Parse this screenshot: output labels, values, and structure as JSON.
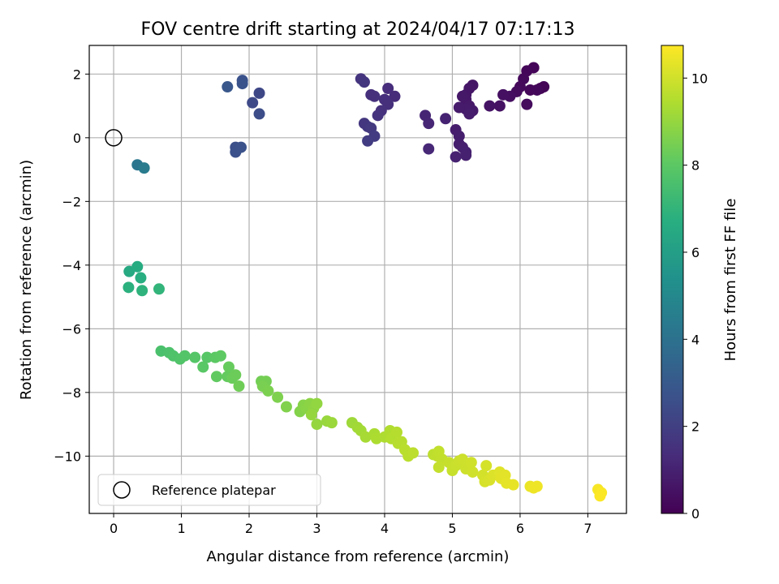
{
  "chart_data": {
    "type": "scatter",
    "title": "FOV centre drift starting at 2024/04/17 07:17:13",
    "xlabel": "Angular distance from reference (arcmin)",
    "ylabel": "Rotation from reference (arcmin)",
    "xlim": [
      -0.36,
      7.57
    ],
    "ylim": [
      -11.8,
      2.9
    ],
    "grid": true,
    "x_ticks": [
      0,
      1,
      2,
      3,
      4,
      5,
      6,
      7
    ],
    "y_ticks": [
      2,
      0,
      -2,
      -4,
      -6,
      -8,
      -10
    ],
    "colorbar": {
      "label": "Hours from first FF file",
      "colormap": "viridis",
      "range": [
        0,
        10.75
      ],
      "ticks": [
        0,
        2,
        4,
        6,
        8,
        10
      ]
    },
    "reference": {
      "label": "Reference platepar",
      "x": 0,
      "y": 0
    },
    "legend": {
      "location": "lower left",
      "entries": [
        "Reference platepar"
      ]
    },
    "points": [
      {
        "x": 6.2,
        "y": 2.2,
        "t": 0.1
      },
      {
        "x": 6.1,
        "y": 2.1,
        "t": 0.15
      },
      {
        "x": 6.05,
        "y": 1.85,
        "t": 0.2
      },
      {
        "x": 6.3,
        "y": 1.55,
        "t": 0.1
      },
      {
        "x": 6.35,
        "y": 1.6,
        "t": 0.12
      },
      {
        "x": 6.15,
        "y": 1.5,
        "t": 0.18
      },
      {
        "x": 6.25,
        "y": 1.5,
        "t": 0.2
      },
      {
        "x": 6.0,
        "y": 1.6,
        "t": 0.25
      },
      {
        "x": 6.1,
        "y": 1.05,
        "t": 0.3
      },
      {
        "x": 5.95,
        "y": 1.45,
        "t": 0.35
      },
      {
        "x": 5.85,
        "y": 1.3,
        "t": 0.4
      },
      {
        "x": 5.75,
        "y": 1.35,
        "t": 0.45
      },
      {
        "x": 5.7,
        "y": 1.0,
        "t": 0.5
      },
      {
        "x": 5.55,
        "y": 1.0,
        "t": 0.55
      },
      {
        "x": 5.3,
        "y": 1.65,
        "t": 0.6
      },
      {
        "x": 5.25,
        "y": 1.55,
        "t": 0.62
      },
      {
        "x": 5.2,
        "y": 1.35,
        "t": 0.65
      },
      {
        "x": 5.2,
        "y": 1.2,
        "t": 0.68
      },
      {
        "x": 5.15,
        "y": 1.3,
        "t": 0.7
      },
      {
        "x": 5.25,
        "y": 1.0,
        "t": 0.72
      },
      {
        "x": 5.3,
        "y": 0.85,
        "t": 0.75
      },
      {
        "x": 5.2,
        "y": 0.9,
        "t": 0.78
      },
      {
        "x": 5.1,
        "y": 0.95,
        "t": 0.8
      },
      {
        "x": 5.25,
        "y": 0.75,
        "t": 0.82
      },
      {
        "x": 5.05,
        "y": 0.25,
        "t": 0.85
      },
      {
        "x": 5.1,
        "y": 0.05,
        "t": 0.88
      },
      {
        "x": 5.1,
        "y": -0.2,
        "t": 0.9
      },
      {
        "x": 5.15,
        "y": -0.3,
        "t": 0.92
      },
      {
        "x": 5.2,
        "y": -0.45,
        "t": 0.95
      },
      {
        "x": 5.2,
        "y": -0.55,
        "t": 0.98
      },
      {
        "x": 5.05,
        "y": -0.6,
        "t": 1.0
      },
      {
        "x": 4.9,
        "y": 0.6,
        "t": 1.05
      },
      {
        "x": 4.6,
        "y": 0.7,
        "t": 1.1
      },
      {
        "x": 4.65,
        "y": 0.45,
        "t": 1.15
      },
      {
        "x": 4.65,
        "y": -0.35,
        "t": 1.2
      },
      {
        "x": 4.15,
        "y": 1.3,
        "t": 1.3
      },
      {
        "x": 4.05,
        "y": 1.55,
        "t": 1.35
      },
      {
        "x": 4.0,
        "y": 1.2,
        "t": 1.4
      },
      {
        "x": 4.05,
        "y": 1.05,
        "t": 1.45
      },
      {
        "x": 3.95,
        "y": 0.85,
        "t": 1.5
      },
      {
        "x": 3.9,
        "y": 0.7,
        "t": 1.55
      },
      {
        "x": 3.85,
        "y": 1.3,
        "t": 1.5
      },
      {
        "x": 3.8,
        "y": 1.35,
        "t": 1.45
      },
      {
        "x": 3.65,
        "y": 1.85,
        "t": 1.6
      },
      {
        "x": 3.7,
        "y": 1.75,
        "t": 1.65
      },
      {
        "x": 3.7,
        "y": 0.45,
        "t": 1.7
      },
      {
        "x": 3.75,
        "y": 0.35,
        "t": 1.75
      },
      {
        "x": 3.8,
        "y": 0.3,
        "t": 1.8
      },
      {
        "x": 3.85,
        "y": 0.05,
        "t": 1.85
      },
      {
        "x": 3.75,
        "y": -0.1,
        "t": 1.9
      },
      {
        "x": 2.15,
        "y": 1.4,
        "t": 2.3
      },
      {
        "x": 2.05,
        "y": 1.1,
        "t": 2.4
      },
      {
        "x": 2.15,
        "y": 0.75,
        "t": 2.5
      },
      {
        "x": 1.9,
        "y": 1.8,
        "t": 2.7
      },
      {
        "x": 1.9,
        "y": 1.7,
        "t": 2.75
      },
      {
        "x": 1.68,
        "y": 1.6,
        "t": 2.9
      },
      {
        "x": 1.8,
        "y": -0.3,
        "t": 2.6
      },
      {
        "x": 1.8,
        "y": -0.45,
        "t": 2.65
      },
      {
        "x": 1.88,
        "y": -0.3,
        "t": 2.7
      },
      {
        "x": 0.35,
        "y": -0.85,
        "t": 4.2
      },
      {
        "x": 0.45,
        "y": -0.95,
        "t": 4.4
      },
      {
        "x": 0.23,
        "y": -4.2,
        "t": 6.5
      },
      {
        "x": 0.35,
        "y": -4.05,
        "t": 6.6
      },
      {
        "x": 0.4,
        "y": -4.4,
        "t": 6.7
      },
      {
        "x": 0.22,
        "y": -4.7,
        "t": 6.8
      },
      {
        "x": 0.42,
        "y": -4.8,
        "t": 6.9
      },
      {
        "x": 0.67,
        "y": -4.75,
        "t": 7.0
      },
      {
        "x": 0.7,
        "y": -6.7,
        "t": 7.6
      },
      {
        "x": 0.82,
        "y": -6.75,
        "t": 7.65
      },
      {
        "x": 0.88,
        "y": -6.85,
        "t": 7.7
      },
      {
        "x": 0.98,
        "y": -6.95,
        "t": 7.75
      },
      {
        "x": 1.05,
        "y": -6.85,
        "t": 7.8
      },
      {
        "x": 1.2,
        "y": -6.9,
        "t": 7.85
      },
      {
        "x": 1.38,
        "y": -6.9,
        "t": 7.9
      },
      {
        "x": 1.32,
        "y": -7.2,
        "t": 7.95
      },
      {
        "x": 1.5,
        "y": -6.9,
        "t": 8.0
      },
      {
        "x": 1.58,
        "y": -6.85,
        "t": 8.05
      },
      {
        "x": 1.52,
        "y": -7.5,
        "t": 8.1
      },
      {
        "x": 1.68,
        "y": -7.5,
        "t": 8.15
      },
      {
        "x": 1.7,
        "y": -7.2,
        "t": 8.2
      },
      {
        "x": 1.75,
        "y": -7.55,
        "t": 8.25
      },
      {
        "x": 1.8,
        "y": -7.45,
        "t": 8.3
      },
      {
        "x": 1.85,
        "y": -7.8,
        "t": 8.35
      },
      {
        "x": 2.18,
        "y": -7.65,
        "t": 8.4
      },
      {
        "x": 2.25,
        "y": -7.65,
        "t": 8.45
      },
      {
        "x": 2.2,
        "y": -7.8,
        "t": 8.5
      },
      {
        "x": 2.28,
        "y": -7.95,
        "t": 8.55
      },
      {
        "x": 2.42,
        "y": -8.15,
        "t": 8.6
      },
      {
        "x": 2.55,
        "y": -8.45,
        "t": 8.65
      },
      {
        "x": 2.75,
        "y": -8.6,
        "t": 8.7
      },
      {
        "x": 2.8,
        "y": -8.4,
        "t": 8.75
      },
      {
        "x": 2.85,
        "y": -8.5,
        "t": 8.8
      },
      {
        "x": 2.9,
        "y": -8.35,
        "t": 8.85
      },
      {
        "x": 2.95,
        "y": -8.5,
        "t": 8.9
      },
      {
        "x": 3.0,
        "y": -8.35,
        "t": 8.95
      },
      {
        "x": 2.92,
        "y": -8.7,
        "t": 9.0
      },
      {
        "x": 3.0,
        "y": -9.0,
        "t": 9.0
      },
      {
        "x": 3.15,
        "y": -8.9,
        "t": 9.05
      },
      {
        "x": 3.22,
        "y": -8.95,
        "t": 9.1
      },
      {
        "x": 3.52,
        "y": -8.95,
        "t": 9.15
      },
      {
        "x": 3.6,
        "y": -9.1,
        "t": 9.2
      },
      {
        "x": 3.65,
        "y": -9.2,
        "t": 9.25
      },
      {
        "x": 3.72,
        "y": -9.4,
        "t": 9.3
      },
      {
        "x": 3.85,
        "y": -9.3,
        "t": 9.35
      },
      {
        "x": 3.88,
        "y": -9.45,
        "t": 9.4
      },
      {
        "x": 4.0,
        "y": -9.4,
        "t": 9.42
      },
      {
        "x": 4.08,
        "y": -9.2,
        "t": 9.45
      },
      {
        "x": 4.1,
        "y": -9.45,
        "t": 9.5
      },
      {
        "x": 4.18,
        "y": -9.25,
        "t": 9.52
      },
      {
        "x": 4.2,
        "y": -9.6,
        "t": 9.55
      },
      {
        "x": 4.25,
        "y": -9.55,
        "t": 9.58
      },
      {
        "x": 4.3,
        "y": -9.8,
        "t": 9.6
      },
      {
        "x": 4.35,
        "y": -10.0,
        "t": 9.62
      },
      {
        "x": 4.42,
        "y": -9.9,
        "t": 9.65
      },
      {
        "x": 4.72,
        "y": -9.95,
        "t": 9.7
      },
      {
        "x": 4.78,
        "y": -10.0,
        "t": 9.72
      },
      {
        "x": 4.8,
        "y": -9.85,
        "t": 9.75
      },
      {
        "x": 4.85,
        "y": -10.1,
        "t": 9.78
      },
      {
        "x": 4.8,
        "y": -10.35,
        "t": 9.8
      },
      {
        "x": 4.95,
        "y": -10.2,
        "t": 9.82
      },
      {
        "x": 5.0,
        "y": -10.45,
        "t": 9.85
      },
      {
        "x": 5.05,
        "y": -10.3,
        "t": 9.88
      },
      {
        "x": 5.1,
        "y": -10.15,
        "t": 9.9
      },
      {
        "x": 5.15,
        "y": -10.1,
        "t": 9.92
      },
      {
        "x": 5.2,
        "y": -10.4,
        "t": 9.95
      },
      {
        "x": 5.28,
        "y": -10.2,
        "t": 9.98
      },
      {
        "x": 5.3,
        "y": -10.5,
        "t": 10.0
      },
      {
        "x": 5.45,
        "y": -10.6,
        "t": 10.05
      },
      {
        "x": 5.5,
        "y": -10.3,
        "t": 10.08
      },
      {
        "x": 5.48,
        "y": -10.8,
        "t": 10.1
      },
      {
        "x": 5.55,
        "y": -10.75,
        "t": 10.15
      },
      {
        "x": 5.6,
        "y": -10.6,
        "t": 10.2
      },
      {
        "x": 5.7,
        "y": -10.5,
        "t": 10.25
      },
      {
        "x": 5.72,
        "y": -10.7,
        "t": 10.3
      },
      {
        "x": 5.78,
        "y": -10.6,
        "t": 10.32
      },
      {
        "x": 5.8,
        "y": -10.85,
        "t": 10.35
      },
      {
        "x": 5.9,
        "y": -10.9,
        "t": 10.38
      },
      {
        "x": 6.15,
        "y": -10.95,
        "t": 10.45
      },
      {
        "x": 6.2,
        "y": -11.0,
        "t": 10.5
      },
      {
        "x": 6.25,
        "y": -10.95,
        "t": 10.52
      },
      {
        "x": 7.15,
        "y": -11.05,
        "t": 10.65
      },
      {
        "x": 7.2,
        "y": -11.15,
        "t": 10.7
      },
      {
        "x": 7.18,
        "y": -11.25,
        "t": 10.72
      }
    ]
  }
}
